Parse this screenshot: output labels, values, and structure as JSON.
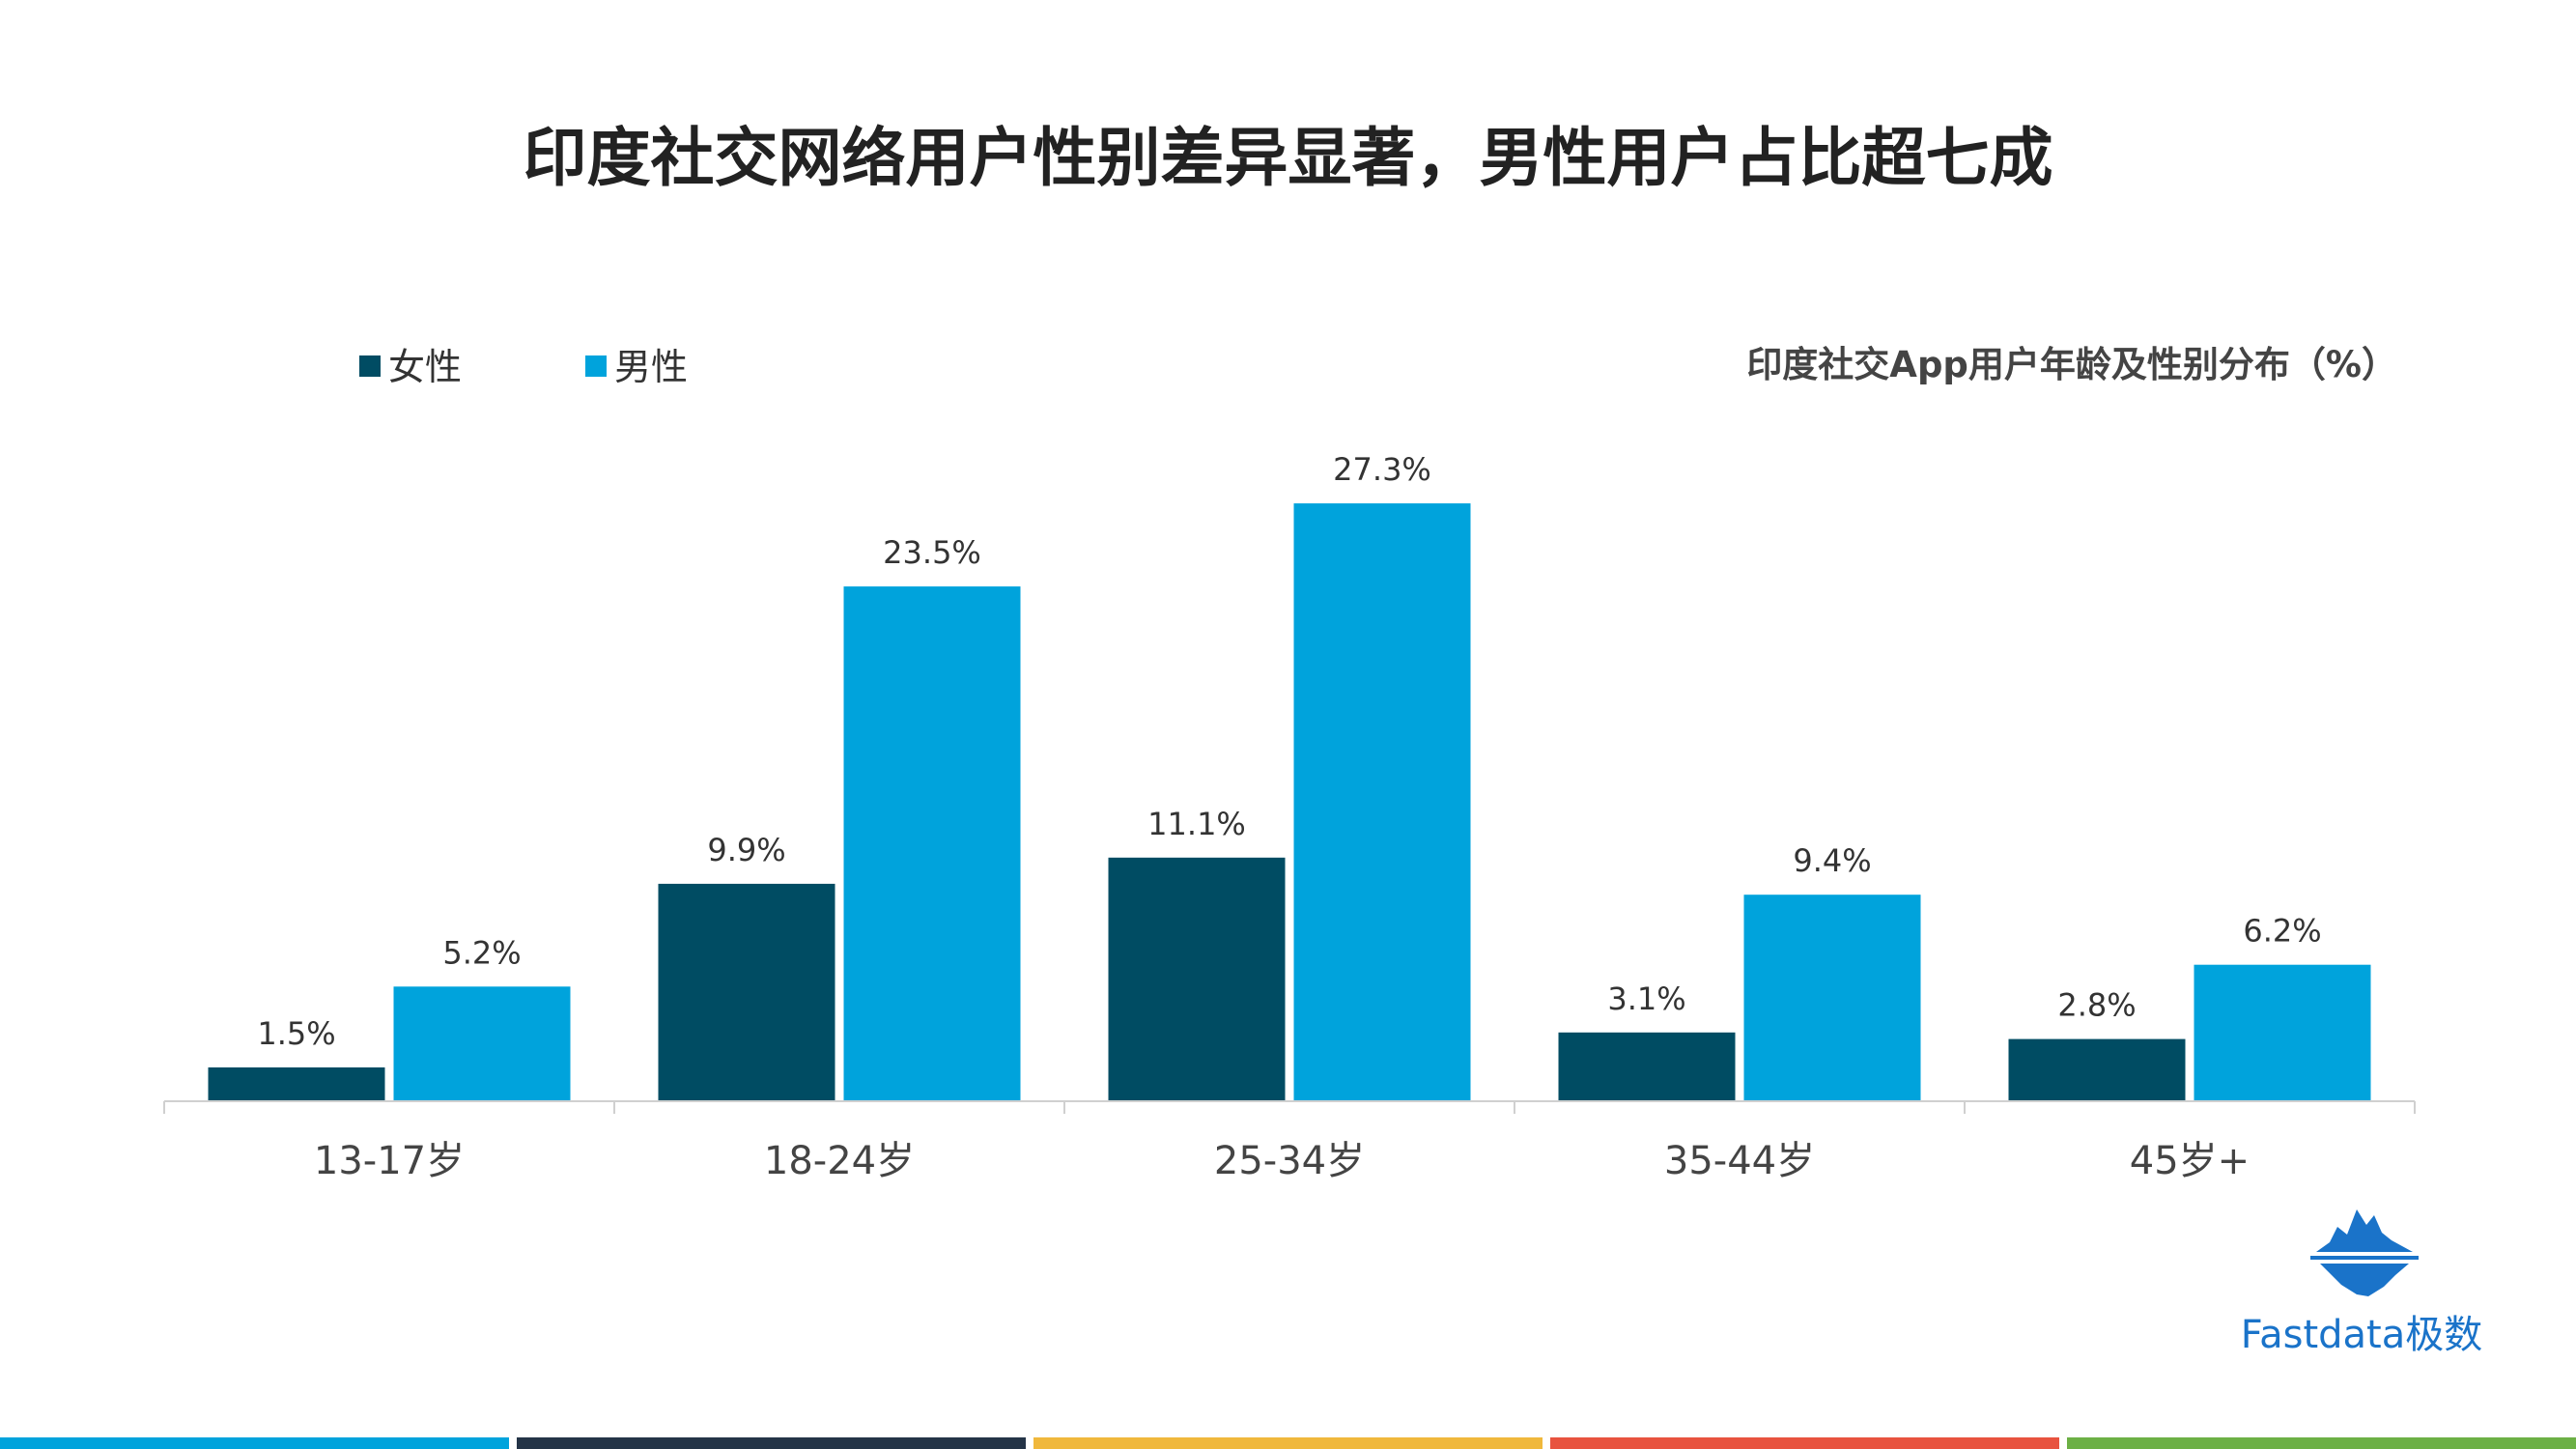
{
  "title": "印度社交网络用户性别差异显著，男性用户占比超七成",
  "brand": {
    "name": "Fastdata极数",
    "color": "#1a73c9"
  },
  "bottom_strip_colors": [
    "#00a3dc",
    "#243447",
    "#f0b83c",
    "#e8533f",
    "#6cb045"
  ],
  "chart_data": {
    "type": "bar",
    "title": "印度社交App用户年龄及性别分布（%）",
    "xlabel": "",
    "ylabel": "",
    "ylim": [
      0,
      30
    ],
    "grid": false,
    "legend_position": "top-left",
    "categories": [
      "13-17岁",
      "18-24岁",
      "25-34岁",
      "35-44岁",
      "45岁+"
    ],
    "series": [
      {
        "name": "女性",
        "color": "#004c63",
        "values": [
          1.5,
          9.9,
          11.1,
          3.1,
          2.8
        ],
        "labels": [
          "1.5%",
          "9.9%",
          "11.1%",
          "3.1%",
          "2.8%"
        ]
      },
      {
        "name": "男性",
        "color": "#00a3dc",
        "values": [
          5.2,
          23.5,
          27.3,
          9.4,
          6.2
        ],
        "labels": [
          "5.2%",
          "23.5%",
          "27.3%",
          "9.4%",
          "6.2%"
        ]
      }
    ]
  }
}
